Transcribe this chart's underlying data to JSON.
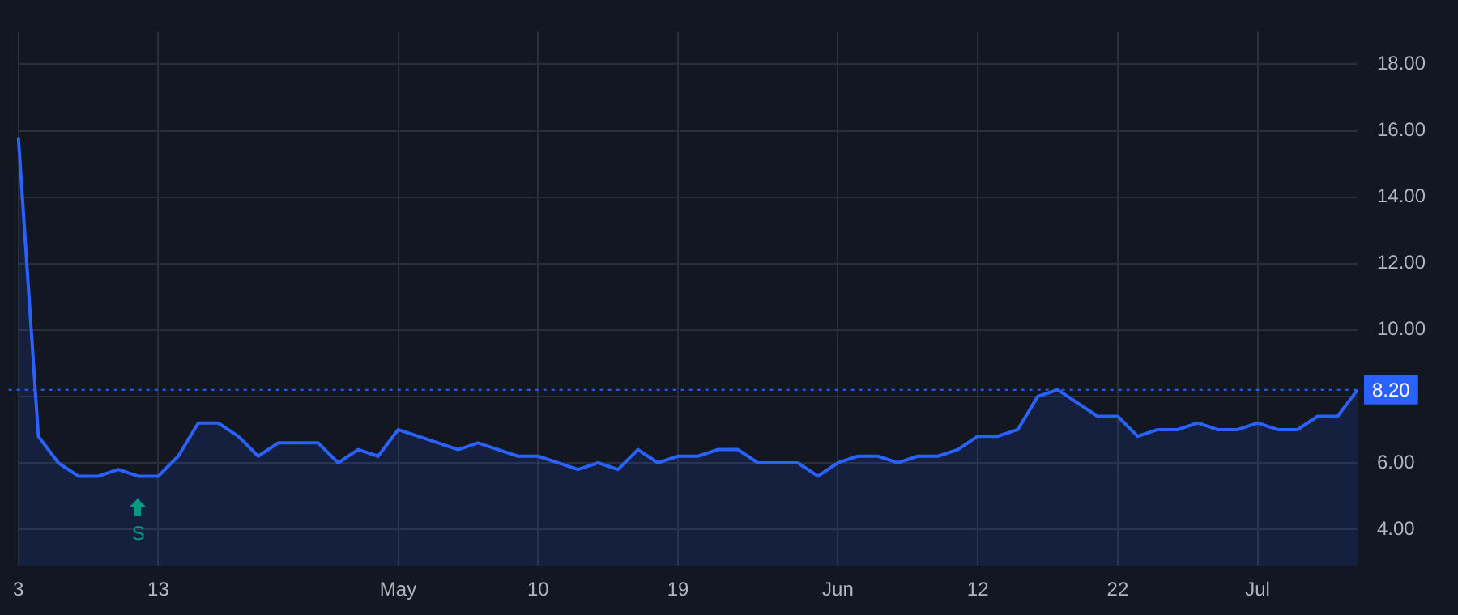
{
  "chart_data": {
    "type": "area",
    "categories": [
      "3",
      null,
      null,
      null,
      null,
      null,
      null,
      "13",
      null,
      null,
      null,
      null,
      null,
      null,
      null,
      null,
      null,
      null,
      null,
      "May",
      null,
      null,
      null,
      null,
      null,
      null,
      "10",
      null,
      null,
      null,
      null,
      null,
      null,
      "19",
      null,
      null,
      null,
      null,
      null,
      null,
      null,
      "Jun",
      null,
      null,
      null,
      null,
      null,
      null,
      "12",
      null,
      null,
      null,
      null,
      null,
      null,
      "22",
      null,
      null,
      null,
      null,
      null,
      null,
      "Jul",
      null,
      null,
      null,
      null,
      null
    ],
    "series": [
      {
        "color": "#2962ff",
        "values": [
          15.8,
          6.8,
          6.0,
          5.6,
          5.6,
          5.8,
          5.6,
          5.6,
          6.2,
          7.2,
          7.2,
          6.8,
          6.2,
          6.6,
          6.6,
          6.6,
          6.0,
          6.4,
          6.2,
          7.0,
          6.8,
          6.6,
          6.4,
          6.6,
          6.4,
          6.2,
          6.2,
          6.0,
          5.8,
          6.0,
          5.8,
          6.4,
          6.0,
          6.2,
          6.2,
          6.4,
          6.4,
          6.0,
          6.0,
          6.0,
          5.6,
          6.0,
          6.2,
          6.2,
          6.0,
          6.2,
          6.2,
          6.4,
          6.8,
          6.8,
          7.0,
          8.0,
          8.2,
          7.8,
          7.4,
          7.4,
          6.8,
          7.0,
          7.0,
          7.2,
          7.0,
          7.0,
          7.2,
          7.0,
          7.0,
          7.4,
          7.4,
          8.2
        ]
      }
    ],
    "ylim": [
      2.9,
      19
    ],
    "yticks": [
      {
        "value": 4,
        "label": "4.00"
      },
      {
        "value": 6,
        "label": "6.00"
      },
      {
        "value": 8,
        "label": null
      },
      {
        "value": 10,
        "label": "10.00"
      },
      {
        "value": 12,
        "label": "12.00"
      },
      {
        "value": 14,
        "label": "14.00"
      },
      {
        "value": 16,
        "label": "16.00"
      },
      {
        "value": 18,
        "label": "18.00"
      }
    ],
    "ref_lines": [
      {
        "axis": "y",
        "value": 8.2,
        "label": "8.20",
        "color": "#2962ff",
        "line_style": "dotted"
      }
    ],
    "annotations": [
      "S"
    ],
    "grid": true,
    "legend": false,
    "marker": "none",
    "line_style": "solid"
  }
}
